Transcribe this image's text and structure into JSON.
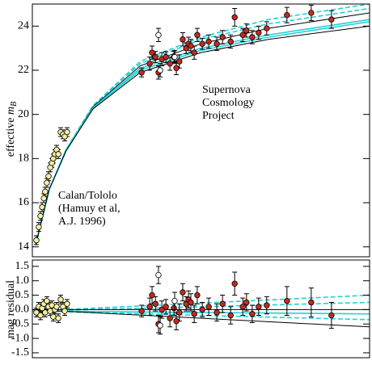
{
  "chart_data": [
    {
      "type": "scatter",
      "ylabel": "effective ",
      "ylabel_symbol": "m",
      "ylabel_subscript": "B",
      "annotations": [
        "Supernova",
        "Cosmology",
        "Project",
        "Calan/Tololo",
        "(Hamuy et al,",
        "A.J. 1996)"
      ],
      "xlim": [
        0,
        100
      ],
      "ylim": [
        13.55,
        25
      ],
      "yticks": [
        14,
        16,
        18,
        20,
        22,
        24
      ],
      "series": [
        {
          "color": "#f5f0a0",
          "x": [
            1.2,
            1.9,
            2.4,
            2.9,
            3.4,
            3.8,
            4.3,
            4.8,
            5.3,
            5.8,
            6.2,
            6.7,
            7.2,
            7.7,
            8.4,
            9.1,
            9.6,
            10.3
          ],
          "values": [
            14.3,
            14.9,
            15.4,
            15.8,
            16.2,
            16.5,
            16.9,
            17.2,
            17.6,
            17.8,
            18.0,
            18.2,
            18.4,
            18.2,
            19.2,
            19.1,
            19.0,
            19.2
          ],
          "errors": [
            0.2,
            0.2,
            0.2,
            0.2,
            0.2,
            0.2,
            0.2,
            0.2,
            0.2,
            0.2,
            0.2,
            0.2,
            0.2,
            0.2,
            0.2,
            0.2,
            0.2,
            0.2
          ]
        },
        {
          "color": "#c8281e",
          "x": [
            32.4,
            34.8,
            35.5,
            36.5,
            37.4,
            38.4,
            39.6,
            40.8,
            42,
            42.7,
            43.6,
            44.6,
            45.6,
            46.3,
            47,
            48,
            48.9,
            50.4,
            52.3,
            54.7,
            56.4,
            58.8,
            60,
            62.4,
            63.5,
            65.2,
            67.1,
            69.5,
            75.5,
            82.7,
            88.7
          ],
          "values": [
            21.9,
            22.3,
            22.8,
            22.6,
            21.9,
            22.5,
            22.6,
            22.3,
            22.6,
            22.1,
            22.4,
            23.4,
            23.0,
            23.2,
            23.1,
            22.8,
            23.6,
            23.2,
            23.3,
            23.2,
            23.5,
            23.3,
            24.4,
            23.6,
            23.8,
            23.5,
            23.7,
            23.9,
            24.5,
            24.6,
            24.3
          ],
          "errors": [
            0.2,
            0.3,
            0.3,
            0.25,
            0.3,
            0.3,
            0.25,
            0.3,
            0.25,
            0.3,
            0.3,
            0.3,
            0.25,
            0.3,
            0.3,
            0.3,
            0.3,
            0.25,
            0.3,
            0.3,
            0.3,
            0.3,
            0.4,
            0.3,
            0.3,
            0.3,
            0.3,
            0.3,
            0.35,
            0.35,
            0.4
          ]
        },
        {
          "color": "#ffffff",
          "x": [
            37.4,
            37.9,
            42.2
          ],
          "values": [
            23.6,
            22.0,
            22.6
          ],
          "errors": [
            0.3,
            0.3,
            0.3
          ]
        }
      ],
      "curves": [
        {
          "color": "#22d0d8",
          "style": "dashed",
          "x": [
            1,
            5,
            10,
            18,
            32,
            50,
            70,
            100
          ],
          "values": [
            14.1,
            16.6,
            18.4,
            20.4,
            22.4,
            23.5,
            24.3,
            25.0
          ]
        },
        {
          "color": "#22d0d8",
          "style": "dashed",
          "x": [
            1,
            5,
            10,
            18,
            32,
            50,
            70,
            100
          ],
          "values": [
            14.1,
            16.6,
            18.4,
            20.4,
            22.3,
            23.4,
            24.1,
            24.8
          ]
        },
        {
          "color": "#000000",
          "style": "solid",
          "x": [
            1,
            5,
            10,
            18,
            32,
            50,
            70,
            100
          ],
          "values": [
            14.1,
            16.6,
            18.4,
            20.35,
            22.2,
            23.2,
            23.9,
            24.6
          ]
        },
        {
          "color": "#22d0d8",
          "style": "solid",
          "x": [
            1,
            5,
            10,
            18,
            32,
            50,
            70,
            100
          ],
          "values": [
            14.1,
            16.6,
            18.4,
            20.3,
            22.1,
            23.0,
            23.6,
            24.3
          ]
        },
        {
          "color": "#22d0d8",
          "style": "solid",
          "x": [
            1,
            5,
            10,
            18,
            32,
            50,
            70,
            100
          ],
          "values": [
            14.1,
            16.6,
            18.35,
            20.3,
            22.0,
            22.9,
            23.5,
            24.2
          ]
        },
        {
          "color": "#000000",
          "style": "solid",
          "x": [
            1,
            5,
            10,
            18,
            32,
            50,
            70,
            100
          ],
          "values": [
            14.1,
            16.6,
            18.35,
            20.25,
            21.9,
            22.8,
            23.4,
            24.0
          ]
        }
      ]
    },
    {
      "type": "scatter",
      "ylabel": "mag residual",
      "xlim": [
        0,
        100
      ],
      "ylim": [
        -1.67,
        1.72
      ],
      "yticks": [
        1.5,
        {
          "value": 1,
          "label": "1.0"
        },
        0.5,
        {
          "value": 0,
          "label": "0.0"
        },
        -0.5,
        {
          "value": -1,
          "label": "-1.0"
        },
        -1.5
      ],
      "series": [
        {
          "color": "#f5f0a0",
          "x": [
            1.2,
            1.9,
            2.4,
            2.9,
            3.4,
            3.8,
            4.3,
            4.8,
            5.3,
            5.8,
            6.2,
            6.7,
            7.2,
            7.7,
            8.4,
            9.1,
            9.6,
            10.3
          ],
          "values": [
            -0.1,
            0.1,
            -0.2,
            0.05,
            0.2,
            -0.1,
            0.3,
            0.1,
            -0.05,
            0.15,
            -0.25,
            0.0,
            0.1,
            -0.3,
            0.35,
            0.1,
            -0.05,
            0.2
          ],
          "errors": [
            0.15,
            0.15,
            0.15,
            0.15,
            0.15,
            0.15,
            0.15,
            0.15,
            0.15,
            0.15,
            0.15,
            0.15,
            0.15,
            0.15,
            0.15,
            0.15,
            0.15,
            0.15
          ]
        },
        {
          "color": "#c8281e",
          "x": [
            32.4,
            34.8,
            35.5,
            36.5,
            37.4,
            38.4,
            39.6,
            40.8,
            42,
            42.7,
            43.6,
            44.6,
            45.6,
            46.3,
            47,
            48,
            48.9,
            50.4,
            52.3,
            54.7,
            56.4,
            58.8,
            60,
            62.4,
            63.5,
            65.2,
            67.1,
            69.5,
            75.5,
            82.7,
            88.7
          ],
          "values": [
            -0.05,
            0.1,
            0.5,
            0.2,
            -0.5,
            0.0,
            0.1,
            -0.3,
            0.05,
            -0.4,
            -0.1,
            0.6,
            0.2,
            0.35,
            0.25,
            -0.15,
            0.5,
            0.0,
            0.1,
            -0.1,
            0.2,
            -0.2,
            0.9,
            0.1,
            0.25,
            -0.15,
            0.1,
            0.15,
            0.3,
            0.25,
            -0.2
          ],
          "errors": [
            0.2,
            0.3,
            0.3,
            0.25,
            0.3,
            0.3,
            0.25,
            0.3,
            0.25,
            0.3,
            0.3,
            0.3,
            0.25,
            0.3,
            0.3,
            0.3,
            0.3,
            0.25,
            0.3,
            0.3,
            0.3,
            0.3,
            0.4,
            0.3,
            0.3,
            0.3,
            0.3,
            0.3,
            0.5,
            0.5,
            0.45
          ]
        },
        {
          "color": "#ffffff",
          "x": [
            37.4,
            37.9,
            42.2
          ],
          "values": [
            1.2,
            -0.55,
            0.3
          ],
          "errors": [
            0.3,
            0.3,
            0.3
          ]
        }
      ],
      "curves": [
        {
          "color": "#22d0d8",
          "style": "dashed",
          "x": [
            0,
            100
          ],
          "values": [
            -0.05,
            0.5
          ]
        },
        {
          "color": "#22d0d8",
          "style": "dashed",
          "x": [
            0,
            100
          ],
          "values": [
            -0.05,
            0.25
          ]
        },
        {
          "color": "#000000",
          "style": "solid",
          "x": [
            0,
            100
          ],
          "values": [
            0,
            0
          ]
        },
        {
          "color": "#22d0d8",
          "style": "solid",
          "x": [
            0,
            100
          ],
          "values": [
            -0.05,
            -0.15
          ]
        },
        {
          "color": "#22d0d8",
          "style": "dashed",
          "x": [
            0,
            100
          ],
          "values": [
            -0.05,
            -0.35
          ]
        },
        {
          "color": "#000000",
          "style": "solid",
          "x": [
            0,
            100
          ],
          "values": [
            0,
            -0.6
          ]
        }
      ]
    }
  ]
}
